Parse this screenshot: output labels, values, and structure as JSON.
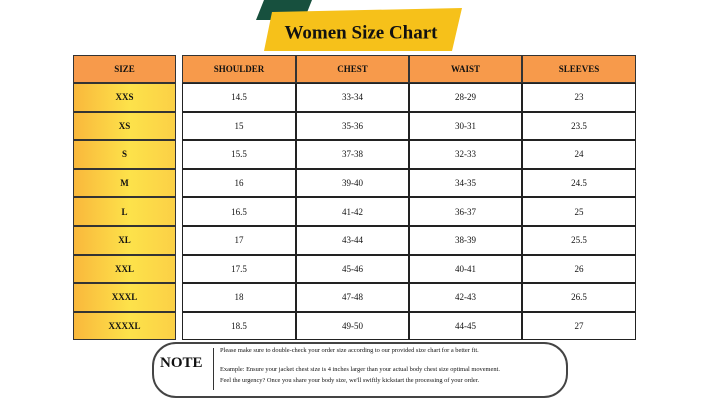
{
  "header": {
    "title": "Women Size Chart"
  },
  "table": {
    "size_header": "SIZE",
    "columns": [
      "SHOULDER",
      "CHEST",
      "WAIST",
      "SLEEVES"
    ],
    "sizes": [
      "XXS",
      "XS",
      "S",
      "M",
      "L",
      "XL",
      "XXL",
      "XXXL",
      "XXXXL"
    ],
    "rows": [
      [
        "14.5",
        "33-34",
        "28-29",
        "23"
      ],
      [
        "15",
        "35-36",
        "30-31",
        "23.5"
      ],
      [
        "15.5",
        "37-38",
        "32-33",
        "24"
      ],
      [
        "16",
        "39-40",
        "34-35",
        "24.5"
      ],
      [
        "16.5",
        "41-42",
        "36-37",
        "25"
      ],
      [
        "17",
        "43-44",
        "38-39",
        "25.5"
      ],
      [
        "17.5",
        "45-46",
        "40-41",
        "26"
      ],
      [
        "18",
        "47-48",
        "42-43",
        "26.5"
      ],
      [
        "18.5",
        "49-50",
        "44-45",
        "27"
      ]
    ]
  },
  "note": {
    "label": "NOTE",
    "lines": [
      "Please make sure to double-check your order size according to our provided size chart for a better fit.",
      "Example: Ensure your jacket chest size is 4 inches larger than your actual body chest size optimal movement.",
      "Feel the urgency? Once you share your body size, we'll swiftly kickstart the processing of your order."
    ]
  }
}
